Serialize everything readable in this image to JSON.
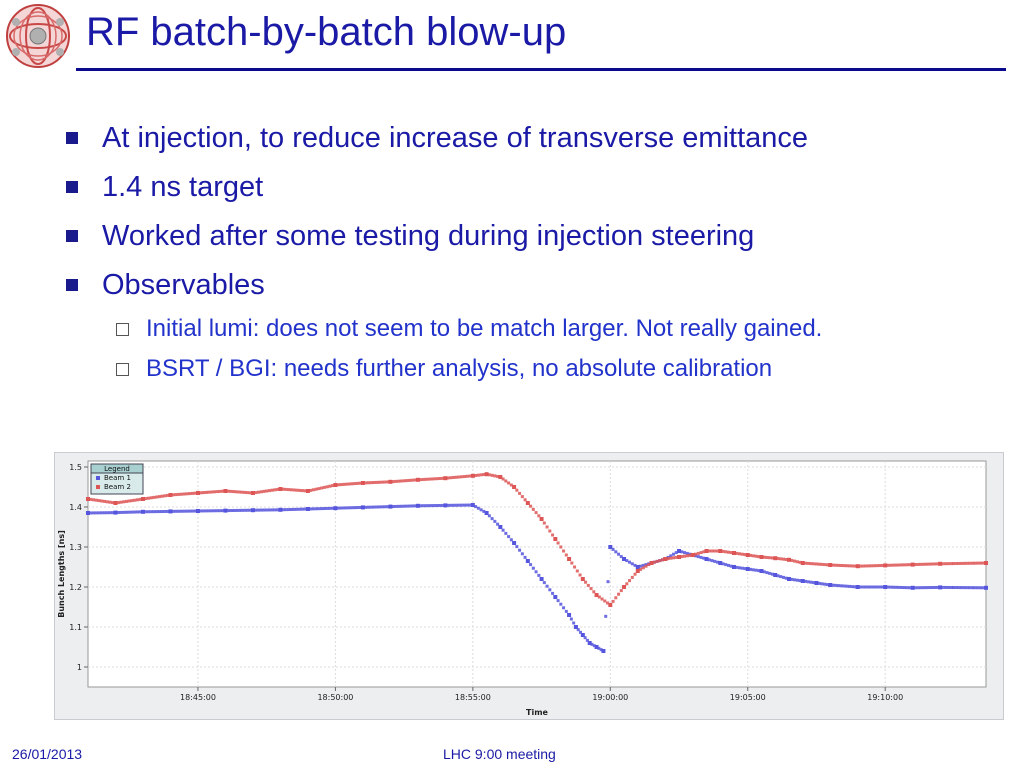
{
  "slide": {
    "title": "RF batch-by-batch blow-up",
    "bullets": [
      "At injection, to reduce increase of transverse emittance",
      "1.4 ns target",
      "Worked after some testing during injection steering",
      "Observables"
    ],
    "sub_bullets": [
      "Initial lumi: does not seem to be match larger. Not really gained.",
      "BSRT / BGI: needs further analysis, no absolute calibration"
    ],
    "footer_date": "26/01/2013",
    "footer_center": "LHC 9:00 meeting"
  },
  "logo_icon": "cern-lhc-logo-icon",
  "colors": {
    "title": "#1a1aa6",
    "rule": "#0a0a8c",
    "beam1": "#5555dd",
    "beam2": "#dd5555"
  },
  "chart_data": {
    "type": "scatter",
    "title": "",
    "xlabel": "Time",
    "ylabel": "Bunch Lengths [ns]",
    "xlim": [
      "18:41:00",
      "19:13:40"
    ],
    "ylim": [
      0.95,
      1.515
    ],
    "xticks": [
      "18:45:00",
      "18:50:00",
      "18:55:00",
      "19:00:00",
      "19:05:00",
      "19:10:00"
    ],
    "yticks": [
      "1",
      "1.1",
      "1.2",
      "1.3",
      "1.4",
      "1.5"
    ],
    "grid": true,
    "legend": {
      "title": "Legend",
      "position": "top-left",
      "entries": [
        "Beam 1",
        "Beam 2"
      ]
    },
    "series": [
      {
        "name": "Beam 1",
        "color": "#5555dd",
        "x": [
          "18:41:00",
          "18:42:00",
          "18:43:00",
          "18:44:00",
          "18:45:00",
          "18:46:00",
          "18:47:00",
          "18:48:00",
          "18:49:00",
          "18:50:00",
          "18:51:00",
          "18:52:00",
          "18:53:00",
          "18:54:00",
          "18:55:00",
          "18:55:30",
          "18:56:00",
          "18:56:30",
          "18:57:00",
          "18:57:30",
          "18:58:00",
          "18:58:30",
          "18:58:45",
          "18:59:00",
          "18:59:15",
          "18:59:30",
          "18:59:45",
          "19:00:00",
          "19:00:30",
          "19:01:00",
          "19:01:30",
          "19:02:00",
          "19:02:30",
          "19:03:00",
          "19:03:30",
          "19:04:00",
          "19:04:30",
          "19:05:00",
          "19:05:30",
          "19:06:00",
          "19:06:30",
          "19:07:00",
          "19:07:30",
          "19:08:00",
          "19:09:00",
          "19:10:00",
          "19:11:00",
          "19:12:00",
          "19:13:40"
        ],
        "y": [
          1.385,
          1.386,
          1.388,
          1.389,
          1.39,
          1.391,
          1.392,
          1.393,
          1.395,
          1.397,
          1.399,
          1.401,
          1.403,
          1.404,
          1.405,
          1.385,
          1.35,
          1.31,
          1.265,
          1.22,
          1.175,
          1.13,
          1.1,
          1.08,
          1.06,
          1.05,
          1.04,
          1.3,
          1.27,
          1.25,
          1.26,
          1.27,
          1.29,
          1.28,
          1.27,
          1.26,
          1.25,
          1.245,
          1.24,
          1.23,
          1.22,
          1.215,
          1.21,
          1.205,
          1.2,
          1.2,
          1.198,
          1.199,
          1.198
        ]
      },
      {
        "name": "Beam 2",
        "color": "#dd5555",
        "x": [
          "18:41:00",
          "18:42:00",
          "18:43:00",
          "18:44:00",
          "18:45:00",
          "18:46:00",
          "18:47:00",
          "18:48:00",
          "18:49:00",
          "18:50:00",
          "18:51:00",
          "18:52:00",
          "18:53:00",
          "18:54:00",
          "18:55:00",
          "18:55:30",
          "18:56:00",
          "18:56:30",
          "18:57:00",
          "18:57:30",
          "18:58:00",
          "18:58:30",
          "18:59:00",
          "18:59:30",
          "19:00:00",
          "19:00:30",
          "19:01:00",
          "19:01:30",
          "19:02:00",
          "19:02:30",
          "19:03:00",
          "19:03:30",
          "19:04:00",
          "19:04:30",
          "19:05:00",
          "19:05:30",
          "19:06:00",
          "19:06:30",
          "19:07:00",
          "19:08:00",
          "19:09:00",
          "19:10:00",
          "19:11:00",
          "19:12:00",
          "19:13:40"
        ],
        "y": [
          1.42,
          1.41,
          1.42,
          1.43,
          1.435,
          1.44,
          1.435,
          1.445,
          1.44,
          1.455,
          1.46,
          1.463,
          1.468,
          1.472,
          1.478,
          1.482,
          1.475,
          1.45,
          1.41,
          1.37,
          1.32,
          1.27,
          1.22,
          1.18,
          1.155,
          1.2,
          1.24,
          1.26,
          1.27,
          1.275,
          1.28,
          1.29,
          1.29,
          1.285,
          1.28,
          1.275,
          1.272,
          1.268,
          1.26,
          1.255,
          1.252,
          1.254,
          1.256,
          1.258,
          1.26
        ]
      }
    ]
  }
}
